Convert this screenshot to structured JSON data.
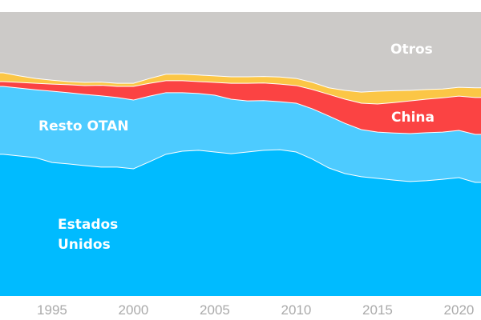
{
  "chart_data": {
    "type": "area",
    "stacked": "100%",
    "x": [
      1992,
      1993,
      1994,
      1995,
      1996,
      1997,
      1998,
      1999,
      2000,
      2001,
      2002,
      2003,
      2004,
      2005,
      2006,
      2007,
      2008,
      2009,
      2010,
      2011,
      2012,
      2013,
      2014,
      2015,
      2016,
      2017,
      2018,
      2019,
      2020,
      2021
    ],
    "xlim": [
      1992,
      2021
    ],
    "ylim": [
      0,
      100
    ],
    "x_ticks": [
      "1995",
      "2000",
      "2005",
      "2010",
      "2015",
      "2020"
    ],
    "grid": false,
    "series": [
      {
        "name": "Estados Unidos",
        "color": "#00bbff",
        "values": [
          49.9,
          49.3,
          48.7,
          47.0,
          46.5,
          45.9,
          45.4,
          45.4,
          44.8,
          47.3,
          49.9,
          51.0,
          51.3,
          50.7,
          50.1,
          50.7,
          51.3,
          51.5,
          50.7,
          48.2,
          45.1,
          43.1,
          42.0,
          41.4,
          40.8,
          40.3,
          40.6,
          41.1,
          41.7,
          40.0
        ]
      },
      {
        "name": "Resto OTAN",
        "color": "#4dcbff",
        "values": [
          23.9,
          23.9,
          23.9,
          25.1,
          25.1,
          25.1,
          25.1,
          24.5,
          24.2,
          23.1,
          21.7,
          20.6,
          20.0,
          20.0,
          19.2,
          18.0,
          17.5,
          16.9,
          17.2,
          17.7,
          18.3,
          17.7,
          16.6,
          16.3,
          16.6,
          16.9,
          16.9,
          16.6,
          16.6,
          16.9
        ]
      },
      {
        "name": "China",
        "color": "#fb4343",
        "values": [
          1.7,
          2.0,
          2.3,
          2.5,
          2.8,
          3.1,
          3.7,
          3.9,
          4.8,
          4.5,
          4.2,
          4.2,
          4.2,
          4.5,
          5.6,
          6.2,
          6.2,
          6.2,
          6.2,
          6.8,
          7.6,
          8.5,
          9.3,
          9.9,
          10.7,
          11.5,
          11.8,
          12.1,
          12.1,
          13.0
        ]
      },
      {
        "color": "#fbc646",
        "values": [
          3.1,
          2.3,
          1.7,
          1.4,
          1.1,
          1.1,
          1.1,
          1.1,
          1.1,
          1.7,
          2.3,
          2.3,
          2.3,
          2.3,
          2.3,
          2.3,
          2.3,
          2.5,
          2.5,
          2.5,
          2.3,
          3.1,
          3.9,
          4.5,
          4.2,
          3.7,
          3.4,
          3.1,
          3.1,
          3.4
        ]
      },
      {
        "name": "Otros",
        "color": "#cccac8",
        "values": "remainder to 100"
      }
    ],
    "labels": {
      "otros": "Otros",
      "china": "China",
      "resto": "Resto OTAN",
      "eeuu_line1": "Estados",
      "eeuu_line2": "Unidos"
    }
  }
}
